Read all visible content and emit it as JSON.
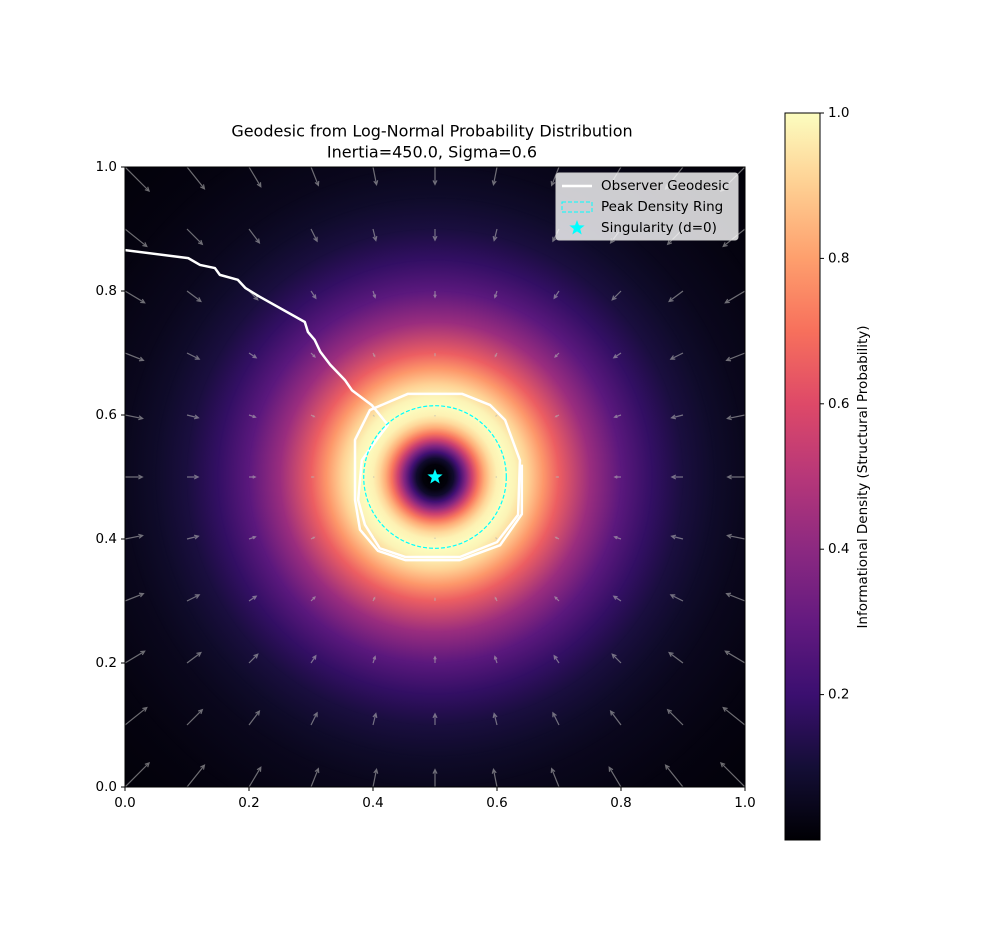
{
  "chart_data": {
    "type": "density_field",
    "title": "Geodesic from Log-Normal Probability Distribution",
    "subtitle": "Inertia=450.0, Sigma=0.6",
    "xlim": [
      0,
      1
    ],
    "ylim": [
      0,
      1
    ],
    "xticks": [
      {
        "value": 0,
        "label": "0.0"
      },
      0.2,
      0.4,
      0.6,
      0.8,
      {
        "value": 1,
        "label": "1.0"
      }
    ],
    "yticks": [
      {
        "value": 0,
        "label": "0.0"
      },
      0.2,
      0.4,
      0.6,
      0.8,
      {
        "value": 1,
        "label": "1.0"
      }
    ],
    "density": {
      "center": [
        0.5,
        0.5
      ],
      "r": [
        0.01,
        0.02,
        0.03,
        0.04,
        0.05,
        0.06,
        0.07,
        0.08,
        0.09,
        0.1,
        0.115,
        0.13,
        0.15,
        0.175,
        0.2,
        0.25,
        0.3,
        0.35,
        0.4,
        0.45,
        0.5,
        0.6,
        0.71
      ],
      "values": [
        0.0003,
        0.014,
        0.081,
        0.212,
        0.381,
        0.556,
        0.711,
        0.833,
        0.92,
        0.973,
        1,
        0.979,
        0.907,
        0.783,
        0.654,
        0.432,
        0.279,
        0.179,
        0.115,
        0.076,
        0.05,
        0.023,
        0.01
      ],
      "colormap": [
        "#000004",
        "#140e36",
        "#3b0f70",
        "#641a80",
        "#8c2981",
        "#b73779",
        "#de4968",
        "#f7705c",
        "#fe9f6d",
        "#fecf92",
        "#fcfdbf"
      ]
    },
    "quiver": {
      "color": "#b4b4b4",
      "x": [
        0,
        0.1,
        0.2,
        0.3,
        0.4,
        0.5,
        0.6,
        0.7,
        0.8,
        0.9,
        1
      ],
      "y": [
        0,
        0.1,
        0.2,
        0.3,
        0.4,
        0.5,
        0.6,
        0.7,
        0.8,
        0.9,
        1
      ],
      "magnitude": [
        [
          0.055,
          0.045,
          0.037,
          0.032,
          0.029,
          0.028,
          0.029,
          0.032,
          0.037,
          0.045,
          0.055
        ],
        [
          0.045,
          0.035,
          0.028,
          0.022,
          0.019,
          0.018,
          0.019,
          0.022,
          0.028,
          0.035,
          0.045
        ],
        [
          0.037,
          0.028,
          0.02,
          0.014,
          0.011,
          0.01,
          0.011,
          0.014,
          0.02,
          0.028,
          0.037
        ],
        [
          0.032,
          0.022,
          0.014,
          0.009,
          0.006,
          0.004,
          0.006,
          0.009,
          0.014,
          0.022,
          0.032
        ],
        [
          0.029,
          0.019,
          0.011,
          0.006,
          0.002,
          0.001,
          0.002,
          0.006,
          0.011,
          0.019,
          0.029
        ],
        [
          0.028,
          0.018,
          0.01,
          0.004,
          0.001,
          0,
          0.001,
          0.004,
          0.01,
          0.018,
          0.028
        ],
        [
          0.029,
          0.019,
          0.011,
          0.006,
          0.002,
          0.001,
          0.002,
          0.006,
          0.011,
          0.019,
          0.029
        ],
        [
          0.032,
          0.022,
          0.014,
          0.009,
          0.006,
          0.004,
          0.006,
          0.009,
          0.014,
          0.022,
          0.032
        ],
        [
          0.037,
          0.028,
          0.02,
          0.014,
          0.011,
          0.01,
          0.011,
          0.014,
          0.02,
          0.028,
          0.037
        ],
        [
          0.045,
          0.035,
          0.028,
          0.022,
          0.019,
          0.018,
          0.019,
          0.022,
          0.028,
          0.035,
          0.045
        ],
        [
          0.055,
          0.045,
          0.037,
          0.032,
          0.029,
          0.028,
          0.029,
          0.032,
          0.037,
          0.045,
          0.055
        ]
      ]
    },
    "series": [
      {
        "name": "Observer Geodesic",
        "type": "line",
        "color": "#ffffff",
        "x": [
          0,
          0.102,
          0.121,
          0.145,
          0.153,
          0.182,
          0.194,
          0.215,
          0.29,
          0.295,
          0.306,
          0.315,
          0.331,
          0.355,
          0.366,
          0.398,
          0.424,
          0.408,
          0.382,
          0.376,
          0.387,
          0.411,
          0.452,
          0.54,
          0.6,
          0.634,
          0.637,
          0.613,
          0.589,
          0.544,
          0.456,
          0.395,
          0.371,
          0.371,
          0.379,
          0.408,
          0.452,
          0.54,
          0.605,
          0.64,
          0.64
        ],
        "y": [
          0.866,
          0.853,
          0.842,
          0.837,
          0.826,
          0.818,
          0.805,
          0.792,
          0.75,
          0.734,
          0.721,
          0.702,
          0.681,
          0.656,
          0.64,
          0.616,
          0.584,
          0.563,
          0.527,
          0.463,
          0.423,
          0.385,
          0.371,
          0.371,
          0.395,
          0.439,
          0.527,
          0.592,
          0.616,
          0.634,
          0.634,
          0.608,
          0.56,
          0.463,
          0.415,
          0.381,
          0.366,
          0.366,
          0.39,
          0.44,
          0.52
        ]
      },
      {
        "name": "Peak Density Ring",
        "type": "circle",
        "color": "#00ffff",
        "center": [
          0.5,
          0.5
        ],
        "radius": 0.115
      },
      {
        "name": "Singularity (d=0)",
        "type": "star",
        "color": "#00ffff",
        "x": [
          0.5
        ],
        "y": [
          0.5
        ]
      }
    ],
    "legend": "upper right",
    "colorbar": {
      "label": "Informational Density (Structural Probability)",
      "lim": [
        0,
        1
      ],
      "ticks": [
        0.2,
        0.4,
        0.6,
        0.8,
        {
          "value": 1,
          "label": "1.0"
        }
      ]
    }
  }
}
